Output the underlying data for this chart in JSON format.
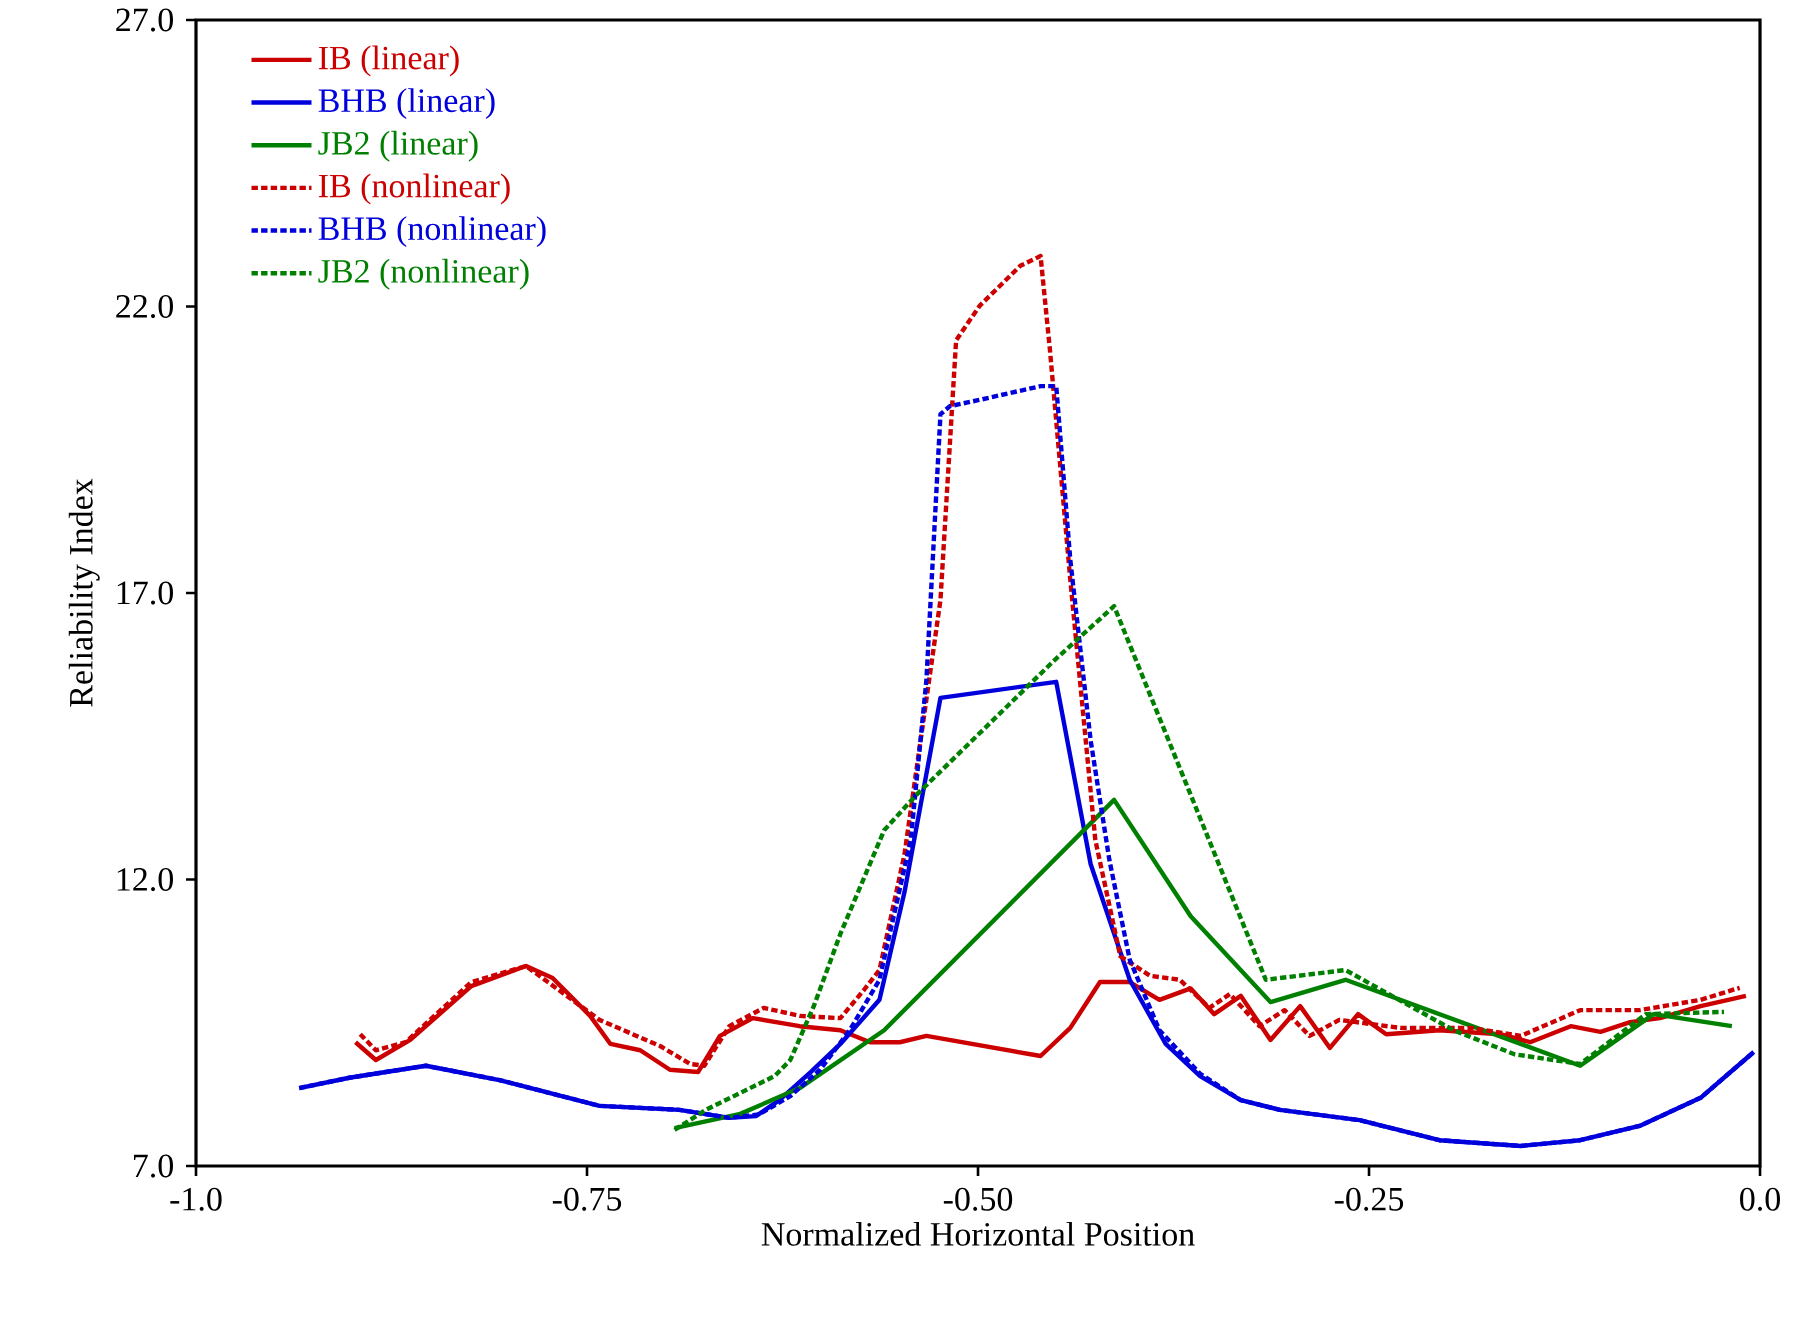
{
  "chart_data": {
    "type": "line",
    "xlabel": "Normalized Horizontal Position",
    "ylabel": "Reliability Index",
    "xlim": [
      -1.0,
      0.0
    ],
    "ylim": [
      7.0,
      27.0
    ],
    "xticks": [
      {
        "value": -1.0,
        "label": "-1.0"
      },
      {
        "value": -0.75,
        "label": "-0.75"
      },
      {
        "value": -0.5,
        "label": "-0.50"
      },
      {
        "value": -0.25,
        "label": "-0.25"
      },
      {
        "value": 0.0,
        "label": "0.0"
      }
    ],
    "yticks": [
      {
        "value": 7.0,
        "label": "7.0"
      },
      {
        "value": 12.0,
        "label": "12.0"
      },
      {
        "value": 17.0,
        "label": "17.0"
      },
      {
        "value": 22.0,
        "label": "22.0"
      },
      {
        "value": 27.0,
        "label": "27.0"
      }
    ],
    "legend": "top left",
    "series": [
      {
        "name": "IB (linear)",
        "color": "#cc0000",
        "line_style": "solid",
        "x": [
          -0.898,
          -0.885,
          -0.863,
          -0.824,
          -0.789,
          -0.772,
          -0.748,
          -0.735,
          -0.716,
          -0.697,
          -0.679,
          -0.665,
          -0.644,
          -0.614,
          -0.588,
          -0.569,
          -0.55,
          -0.533,
          -0.46,
          -0.441,
          -0.422,
          -0.403,
          -0.384,
          -0.364,
          -0.349,
          -0.332,
          -0.313,
          -0.294,
          -0.275,
          -0.257,
          -0.239,
          -0.205,
          -0.166,
          -0.147,
          -0.121,
          -0.102,
          -0.083,
          -0.064,
          -0.038,
          -0.009
        ],
        "values": [
          9.16,
          8.85,
          9.2,
          10.14,
          10.49,
          10.28,
          9.62,
          9.13,
          9.02,
          8.68,
          8.64,
          9.27,
          9.58,
          9.44,
          9.37,
          9.16,
          9.16,
          9.27,
          8.92,
          9.41,
          10.21,
          10.21,
          9.9,
          10.1,
          9.65,
          9.97,
          9.2,
          9.79,
          9.06,
          9.65,
          9.3,
          9.37,
          9.3,
          9.16,
          9.44,
          9.34,
          9.51,
          9.58,
          9.79,
          9.97
        ]
      },
      {
        "name": "BHB (linear)",
        "color": "#0000dd",
        "line_style": "solid",
        "x": [
          -0.934,
          -0.902,
          -0.853,
          -0.806,
          -0.742,
          -0.691,
          -0.659,
          -0.642,
          -0.627,
          -0.607,
          -0.588,
          -0.563,
          -0.547,
          -0.524,
          -0.45,
          -0.428,
          -0.403,
          -0.38,
          -0.358,
          -0.332,
          -0.307,
          -0.256,
          -0.205,
          -0.153,
          -0.115,
          -0.077,
          -0.038,
          -0.004
        ],
        "values": [
          8.36,
          8.54,
          8.75,
          8.5,
          8.05,
          7.98,
          7.84,
          7.87,
          8.15,
          8.64,
          9.13,
          9.9,
          11.78,
          15.17,
          15.45,
          12.27,
          10.25,
          9.13,
          8.57,
          8.15,
          7.98,
          7.8,
          7.45,
          7.35,
          7.45,
          7.7,
          8.19,
          8.99
        ]
      },
      {
        "name": "JB2 (linear)",
        "color": "#008000",
        "line_style": "solid",
        "x": [
          -0.694,
          -0.652,
          -0.614,
          -0.56,
          -0.413,
          -0.364,
          -0.313,
          -0.265,
          -0.115,
          -0.068,
          -0.018
        ],
        "values": [
          7.66,
          7.91,
          8.36,
          9.37,
          13.39,
          11.36,
          9.86,
          10.25,
          8.75,
          9.65,
          9.44
        ]
      },
      {
        "name": "IB (nonlinear)",
        "color": "#cc0000",
        "line_style": "dashed",
        "x": [
          -0.895,
          -0.885,
          -0.866,
          -0.824,
          -0.789,
          -0.742,
          -0.703,
          -0.684,
          -0.675,
          -0.659,
          -0.637,
          -0.614,
          -0.588,
          -0.573,
          -0.563,
          -0.547,
          -0.524,
          -0.514,
          -0.499,
          -0.473,
          -0.46,
          -0.454,
          -0.441,
          -0.425,
          -0.409,
          -0.39,
          -0.371,
          -0.352,
          -0.339,
          -0.32,
          -0.304,
          -0.288,
          -0.269,
          -0.23,
          -0.185,
          -0.153,
          -0.115,
          -0.077,
          -0.038,
          -0.013
        ],
        "values": [
          9.3,
          9.02,
          9.16,
          10.21,
          10.49,
          9.55,
          9.09,
          8.78,
          8.75,
          9.44,
          9.76,
          9.62,
          9.58,
          10.07,
          10.42,
          12.44,
          16.88,
          21.41,
          22.01,
          22.71,
          22.88,
          21.24,
          17.23,
          12.69,
          10.66,
          10.32,
          10.25,
          9.76,
          10.0,
          9.44,
          9.72,
          9.27,
          9.55,
          9.41,
          9.41,
          9.27,
          9.72,
          9.72,
          9.9,
          10.11
        ]
      },
      {
        "name": "BHB (nonlinear)",
        "color": "#0000dd",
        "line_style": "dashed",
        "x": [
          -0.934,
          -0.902,
          -0.853,
          -0.806,
          -0.742,
          -0.691,
          -0.659,
          -0.64,
          -0.62,
          -0.601,
          -0.582,
          -0.563,
          -0.543,
          -0.533,
          -0.524,
          -0.518,
          -0.499,
          -0.46,
          -0.45,
          -0.441,
          -0.428,
          -0.416,
          -0.403,
          -0.384,
          -0.358,
          -0.332,
          -0.307,
          -0.256,
          -0.205,
          -0.153,
          -0.115,
          -0.077,
          -0.038,
          -0.004
        ],
        "values": [
          8.36,
          8.54,
          8.75,
          8.5,
          8.05,
          7.98,
          7.84,
          7.9,
          8.22,
          8.68,
          9.37,
          10.25,
          12.69,
          15.48,
          20.12,
          20.26,
          20.37,
          20.61,
          20.61,
          17.58,
          14.43,
          12.34,
          10.6,
          9.37,
          8.61,
          8.15,
          7.98,
          7.8,
          7.45,
          7.35,
          7.45,
          7.7,
          8.19,
          8.99
        ]
      },
      {
        "name": "JB2 (nonlinear)",
        "color": "#008000",
        "line_style": "dashed",
        "x": [
          -0.694,
          -0.674,
          -0.63,
          -0.62,
          -0.605,
          -0.588,
          -0.56,
          -0.54,
          -0.451,
          -0.413,
          -0.316,
          -0.265,
          -0.196,
          -0.157,
          -0.115,
          -0.073,
          -0.023
        ],
        "values": [
          7.63,
          7.98,
          8.57,
          8.85,
          9.79,
          11.05,
          12.86,
          13.46,
          15.83,
          16.77,
          10.25,
          10.42,
          9.37,
          8.95,
          8.78,
          9.65,
          9.69
        ]
      }
    ]
  }
}
